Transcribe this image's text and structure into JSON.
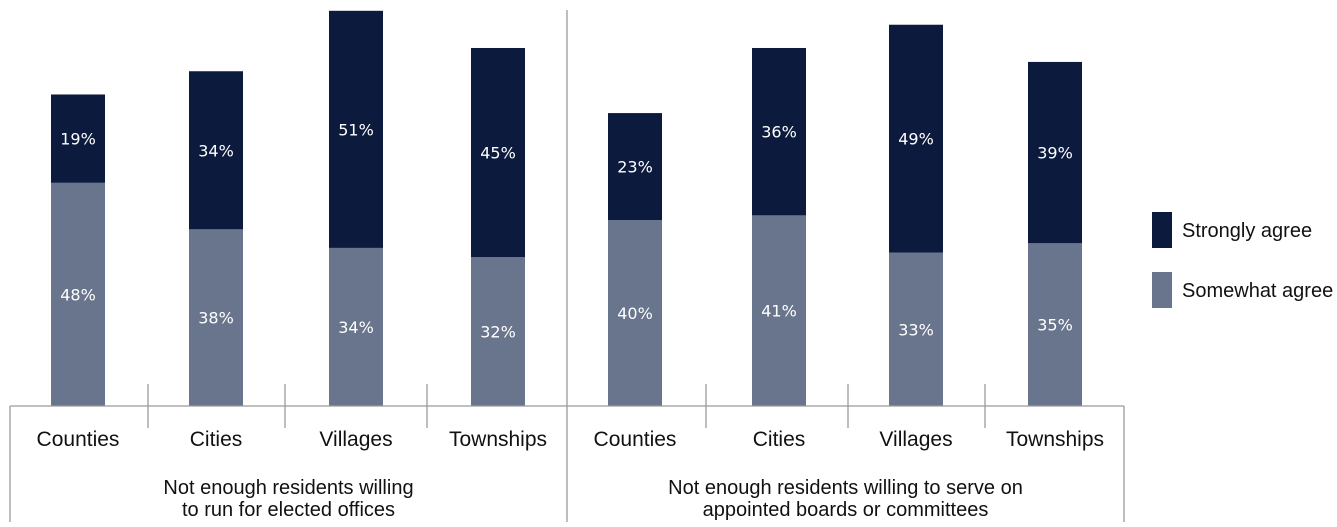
{
  "chart_data": {
    "type": "bar",
    "stacked": true,
    "groups": [
      {
        "label_lines": [
          "Not enough residents willing",
          "to run for elected offices"
        ],
        "categories": [
          "Counties",
          "Cities",
          "Villages",
          "Townships"
        ]
      },
      {
        "label_lines": [
          "Not enough residents willing to serve on",
          "appointed boards or committees"
        ],
        "categories": [
          "Counties",
          "Cities",
          "Villages",
          "Townships"
        ]
      }
    ],
    "series": [
      {
        "name": "Somewhat agree",
        "color": "#68758c",
        "values": [
          48,
          38,
          34,
          32,
          40,
          41,
          33,
          35
        ],
        "labels": [
          "48%",
          "38%",
          "34%",
          "32%",
          "40%",
          "41%",
          "33%",
          "35%"
        ]
      },
      {
        "name": "Strongly agree",
        "color": "#0c1a3d",
        "values": [
          19,
          34,
          51,
          45,
          23,
          36,
          49,
          39
        ],
        "labels": [
          "19%",
          "34%",
          "51%",
          "45%",
          "23%",
          "36%",
          "49%",
          "39%"
        ]
      }
    ],
    "legend": {
      "position": "right",
      "entries": [
        "Strongly agree",
        "Somewhat agree"
      ]
    },
    "ylim": [
      0,
      85
    ],
    "grid": false
  }
}
